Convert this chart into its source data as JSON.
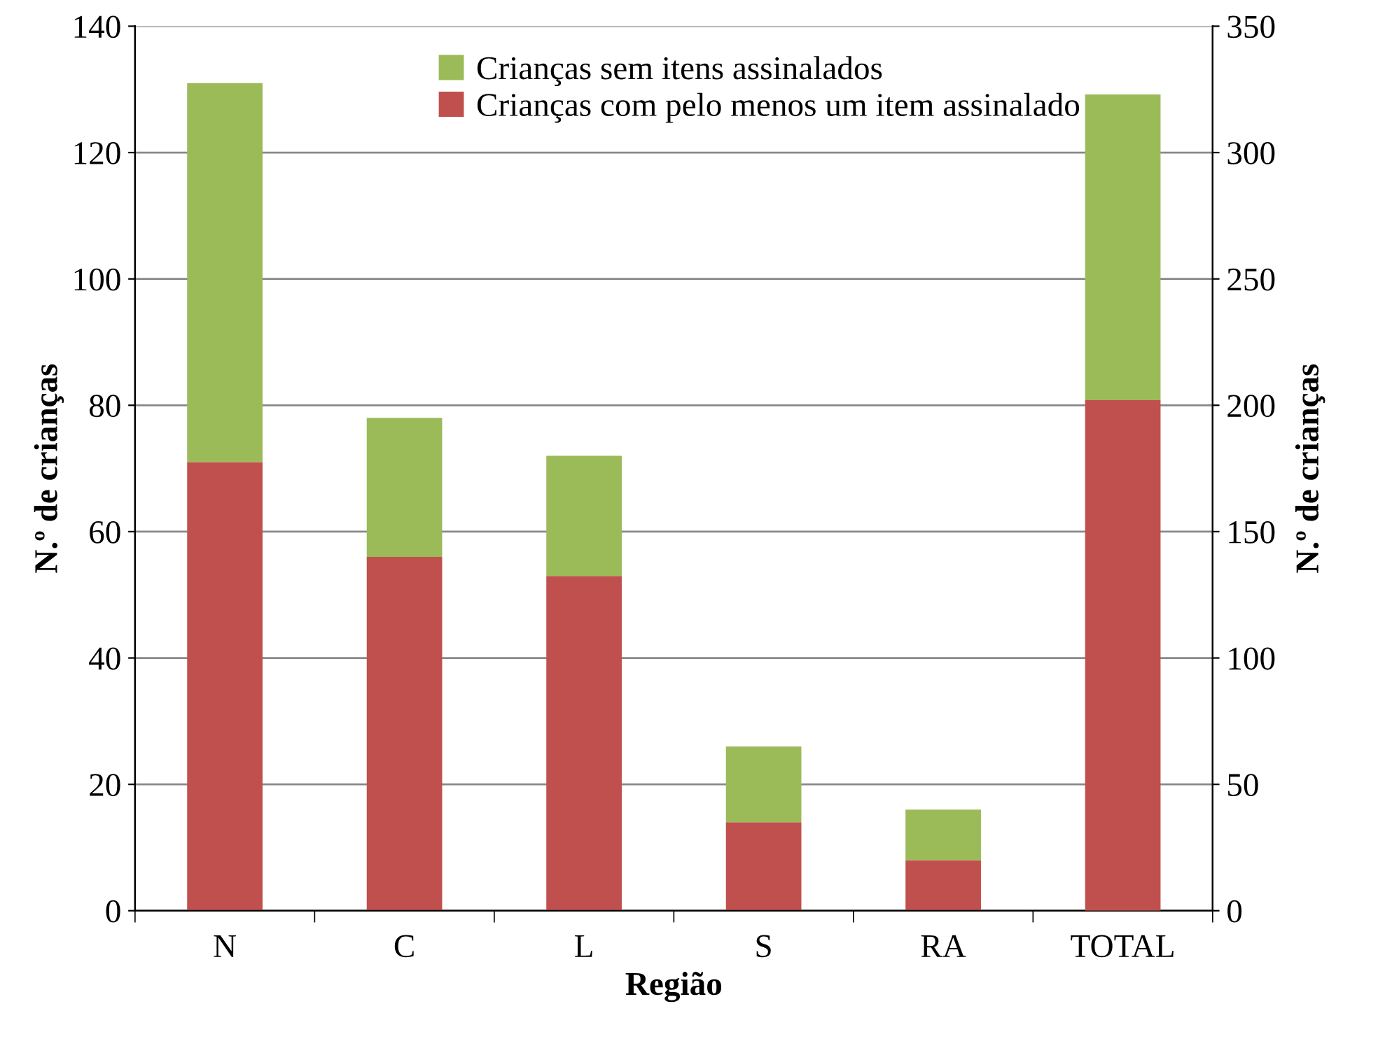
{
  "chart_data": {
    "type": "bar",
    "stacked": true,
    "xlabel": "Região",
    "ylabel": "N.º de crianças",
    "y2label": "N.º de crianças",
    "categories": [
      "N",
      "C",
      "L",
      "S",
      "RA",
      "TOTAL"
    ],
    "series": [
      {
        "name": "Crianças com pelo menos um item assinalado",
        "color": "#c0504d",
        "values": [
          71,
          56,
          53,
          14,
          8,
          null
        ]
      },
      {
        "name": "Crianças sem itens assinalados",
        "color": "#9bbb59",
        "values": [
          60,
          22,
          19,
          12,
          8,
          null
        ]
      },
      {
        "color": "#c0504d",
        "axis": "y2",
        "values": [
          null,
          null,
          null,
          null,
          null,
          202
        ]
      },
      {
        "color": "#9bbb59",
        "axis": "y2",
        "values": [
          null,
          null,
          null,
          null,
          null,
          121
        ]
      }
    ],
    "ylim": [
      0,
      140
    ],
    "yticks": [
      0,
      20,
      40,
      60,
      80,
      100,
      120,
      140
    ],
    "y2lim": [
      0,
      350
    ],
    "y2ticks": [
      0,
      50,
      100,
      150,
      200,
      250,
      300,
      350
    ],
    "grid": "y",
    "legend": "top"
  }
}
